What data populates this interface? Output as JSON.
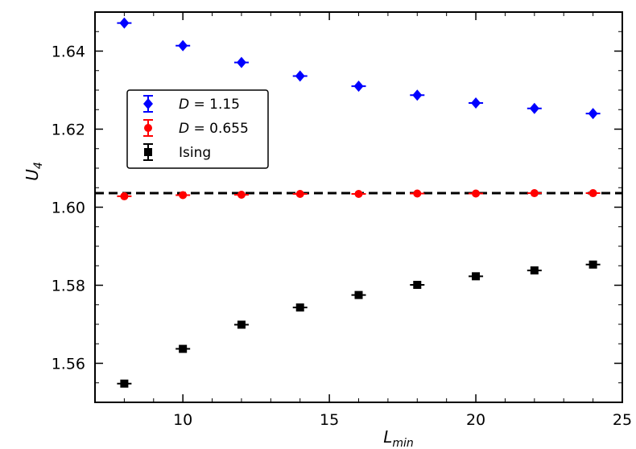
{
  "chart_data": {
    "type": "scatter",
    "xlabel": "L_min",
    "ylabel": "U_4",
    "xlim": [
      7,
      25
    ],
    "ylim": [
      1.55,
      1.65
    ],
    "x_ticks": [
      10,
      15,
      20,
      25
    ],
    "x_tick_labels": [
      "10",
      "15",
      "20",
      "25"
    ],
    "y_ticks": [
      1.56,
      1.58,
      1.6,
      1.62,
      1.64
    ],
    "y_tick_labels": [
      "1.56",
      "1.58",
      "1.60",
      "1.62",
      "1.64"
    ],
    "grid": false,
    "legend_position": "upper-left",
    "reference_line": {
      "style": "dashed",
      "color": "#000000",
      "y": 1.6036
    },
    "series": [
      {
        "name": "D = 1.15",
        "color": "#0000ff",
        "marker": "diamond",
        "x": [
          8,
          10,
          12,
          14,
          16,
          18,
          20,
          22,
          24
        ],
        "y": [
          1.6472,
          1.6414,
          1.6371,
          1.6336,
          1.631,
          1.6287,
          1.6267,
          1.6253,
          1.624
        ]
      },
      {
        "name": "D = 0.655",
        "color": "#ff0000",
        "marker": "circle",
        "x": [
          8,
          10,
          12,
          14,
          16,
          18,
          20,
          22,
          24
        ],
        "y": [
          1.6028,
          1.6031,
          1.6032,
          1.6034,
          1.6034,
          1.6035,
          1.6035,
          1.6036,
          1.6036
        ]
      },
      {
        "name": "Ising",
        "color": "#000000",
        "marker": "square",
        "x": [
          8,
          10,
          12,
          14,
          16,
          18,
          20,
          22,
          24
        ],
        "y": [
          1.5548,
          1.5637,
          1.5699,
          1.5743,
          1.5775,
          1.5801,
          1.5823,
          1.5838,
          1.5853
        ]
      }
    ]
  }
}
